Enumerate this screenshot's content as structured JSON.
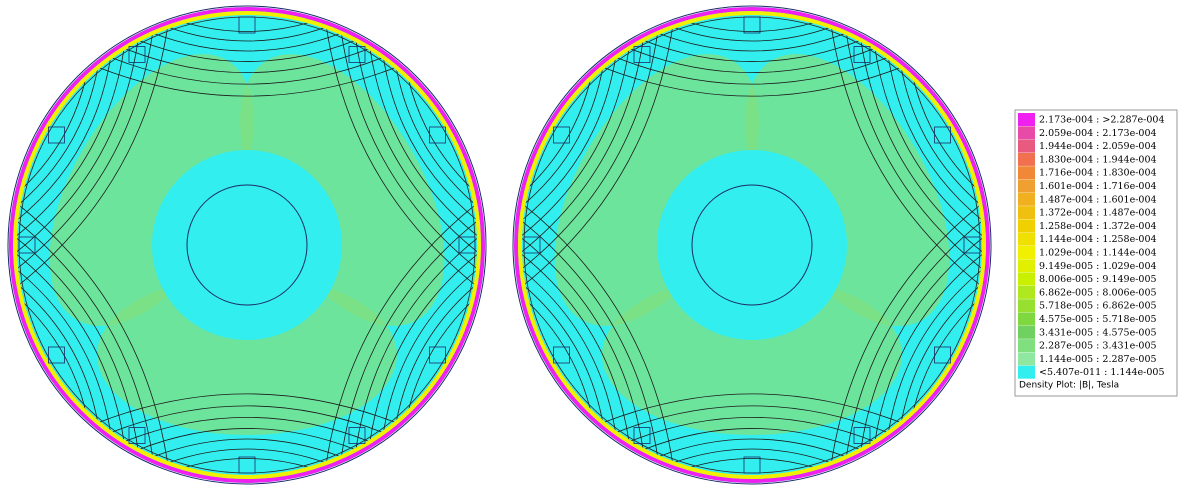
{
  "legend": {
    "entries": [
      {
        "label": "2.173e-004 : >2.287e-004",
        "color": "#f020f0"
      },
      {
        "label": "2.059e-004 : 2.173e-004",
        "color": "#e84aa8"
      },
      {
        "label": "1.944e-004 : 2.059e-004",
        "color": "#e85a80"
      },
      {
        "label": "1.830e-004 : 1.944e-004",
        "color": "#f07050"
      },
      {
        "label": "1.716e-004 : 1.830e-004",
        "color": "#f08838"
      },
      {
        "label": "1.601e-004 : 1.716e-004",
        "color": "#f0a030"
      },
      {
        "label": "1.487e-004 : 1.601e-004",
        "color": "#f0b020"
      },
      {
        "label": "1.372e-004 : 1.487e-004",
        "color": "#f0c010"
      },
      {
        "label": "1.258e-004 : 1.372e-004",
        "color": "#f0d000"
      },
      {
        "label": "1.144e-004 : 1.258e-004",
        "color": "#f0e000"
      },
      {
        "label": "1.029e-004 : 1.144e-004",
        "color": "#f0f000"
      },
      {
        "label": "9.149e-005 : 1.029e-004",
        "color": "#e0f000"
      },
      {
        "label": "8.006e-005 : 9.149e-005",
        "color": "#c8f000"
      },
      {
        "label": "6.862e-005 : 8.006e-005",
        "color": "#b0e820"
      },
      {
        "label": "5.718e-005 : 6.862e-005",
        "color": "#98e030"
      },
      {
        "label": "4.575e-005 : 5.718e-005",
        "color": "#80d840"
      },
      {
        "label": "3.431e-005 : 4.575e-005",
        "color": "#70d060"
      },
      {
        "label": "2.287e-005 : 3.431e-005",
        "color": "#80e080"
      },
      {
        "label": "1.144e-005 : 2.287e-005",
        "color": "#90e8a0"
      },
      {
        "label": "<5.407e-011 : 1.144e-005",
        "color": "#33eeee"
      }
    ],
    "caption": "Density Plot: |B|, Tesla"
  }
}
